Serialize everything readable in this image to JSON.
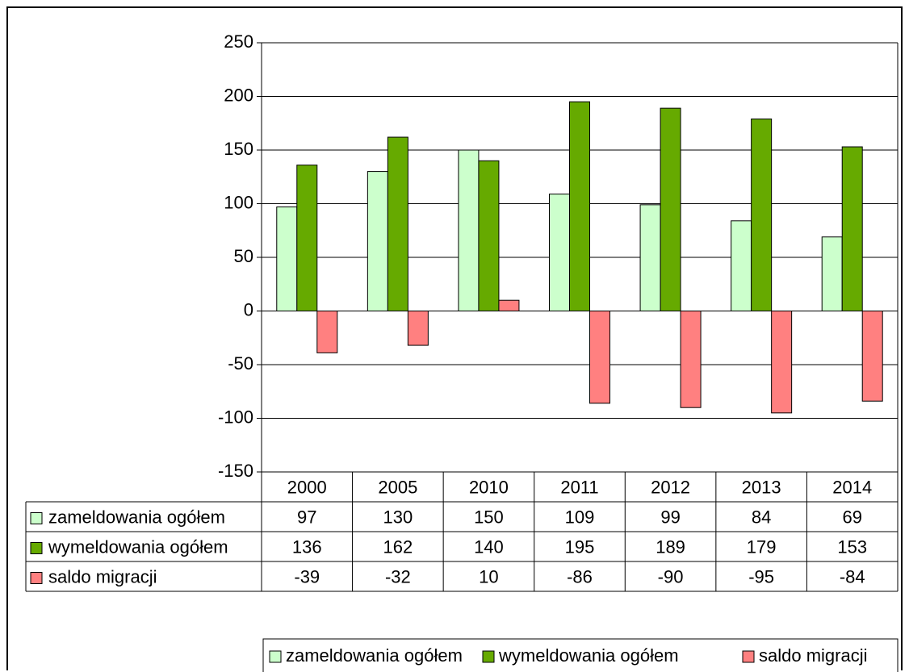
{
  "chart_data": {
    "type": "bar",
    "title": "",
    "xlabel": "",
    "ylabel": "",
    "ylim": [
      -150,
      250
    ],
    "yticks": [
      250,
      200,
      150,
      100,
      50,
      0,
      -50,
      -100,
      -150
    ],
    "grid": true,
    "legend_position": "bottom-right",
    "categories": [
      "2000",
      "2005",
      "2010",
      "2011",
      "2012",
      "2013",
      "2014"
    ],
    "series": [
      {
        "name": "zameldowania ogółem",
        "color": "#ccffcc",
        "values": [
          97,
          130,
          150,
          109,
          99,
          84,
          69
        ]
      },
      {
        "name": "wymeldowania ogółem",
        "color": "#66aa00",
        "values": [
          136,
          162,
          140,
          195,
          189,
          179,
          153
        ]
      },
      {
        "name": "saldo migracji",
        "color": "#ff8080",
        "values": [
          -39,
          -32,
          10,
          -86,
          -90,
          -95,
          -84
        ]
      }
    ],
    "data_table": true
  }
}
